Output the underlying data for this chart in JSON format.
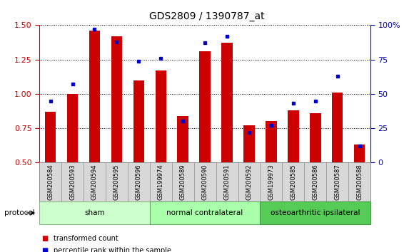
{
  "title": "GDS2809 / 1390787_at",
  "samples": [
    "GSM200584",
    "GSM200593",
    "GSM200594",
    "GSM200595",
    "GSM200596",
    "GSM199974",
    "GSM200589",
    "GSM200590",
    "GSM200591",
    "GSM200592",
    "GSM199973",
    "GSM200585",
    "GSM200586",
    "GSM200587",
    "GSM200588"
  ],
  "transformed_count": [
    0.87,
    1.0,
    1.46,
    1.42,
    1.1,
    1.17,
    0.84,
    1.31,
    1.37,
    0.77,
    0.8,
    0.88,
    0.86,
    1.01,
    0.63
  ],
  "percentile_rank": [
    45,
    57,
    97,
    88,
    74,
    76,
    30,
    87,
    92,
    22,
    27,
    43,
    45,
    63,
    12
  ],
  "ylim_left": [
    0.5,
    1.5
  ],
  "ylim_right": [
    0,
    100
  ],
  "yticks_left": [
    0.5,
    0.75,
    1.0,
    1.25,
    1.5
  ],
  "yticks_right": [
    0,
    25,
    50,
    75,
    100
  ],
  "ytick_labels_right": [
    "0",
    "25",
    "50",
    "75",
    "100%"
  ],
  "bar_color": "#cc0000",
  "dot_color": "#0000cc",
  "groups": [
    {
      "label": "sham",
      "start": 0,
      "end": 5,
      "color": "#ccffcc",
      "border_color": "#88bb88"
    },
    {
      "label": "normal contralateral",
      "start": 5,
      "end": 10,
      "color": "#aaffaa",
      "border_color": "#66aa66"
    },
    {
      "label": "osteoarthritic ipsilateral",
      "start": 10,
      "end": 15,
      "color": "#55cc55",
      "border_color": "#449944"
    }
  ],
  "protocol_label": "protocol",
  "legend_items": [
    {
      "label": "transformed count",
      "color": "#cc0000"
    },
    {
      "label": "percentile rank within the sample",
      "color": "#0000cc"
    }
  ],
  "background_color": "#ffffff",
  "left_tick_color": "#cc0000",
  "right_tick_color": "#0000cc",
  "bar_width": 0.5,
  "xtick_bg": "#d8d8d8"
}
